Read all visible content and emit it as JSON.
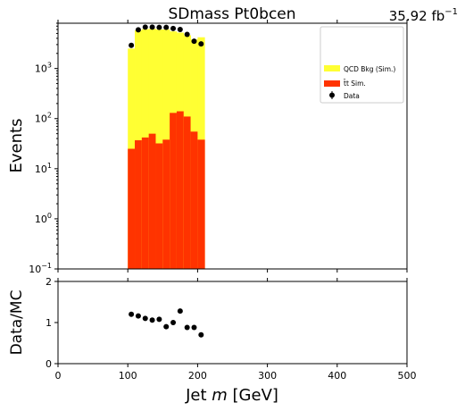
{
  "chart_data": [
    {
      "type": "bar",
      "title": "SDmass  Pt0bcen",
      "lumi": "35.92 fb",
      "lumi_sup": "−1",
      "xlabel_prefix": "Jet ",
      "xlabel_italic": "m",
      "xlabel_suffix": " [GeV]",
      "ylabel": "Events",
      "yscale": "log",
      "xlim": [
        0,
        500
      ],
      "ylim": [
        0.1,
        8000
      ],
      "xticks": [
        0,
        100,
        200,
        300,
        400,
        500
      ],
      "yticks": [
        0.1,
        1,
        10,
        100,
        1000
      ],
      "ytick_base": [
        "10",
        "10",
        "10",
        "10",
        "10"
      ],
      "ytick_exp": [
        "−1",
        "0",
        "1",
        "2",
        "3"
      ],
      "bin_edges": [
        100,
        110,
        120,
        130,
        140,
        150,
        160,
        170,
        180,
        190,
        200,
        210
      ],
      "series": [
        {
          "name": "QCD Bkg (Sim.)",
          "color": "#ffff33",
          "stack_top": [
            2500,
            5800,
            6100,
            6200,
            6000,
            6000,
            5500,
            5200,
            4600,
            3800,
            4200
          ]
        },
        {
          "name": "t̄t Sim.",
          "color": "#ff3300",
          "values": [
            25,
            37,
            42,
            50,
            32,
            38,
            130,
            140,
            110,
            55,
            38
          ]
        },
        {
          "name": "Data",
          "color": "#000000",
          "x": [
            105,
            115,
            125,
            135,
            145,
            155,
            165,
            175,
            185,
            195,
            205
          ],
          "values": [
            2900,
            5900,
            6700,
            6700,
            6600,
            6600,
            6300,
            6000,
            4800,
            3500,
            3100
          ]
        }
      ],
      "legend": {
        "position": "top-right"
      }
    },
    {
      "type": "scatter",
      "ylabel": "Data/MC",
      "xlim": [
        0,
        500
      ],
      "ylim": [
        0,
        2
      ],
      "yticks": [
        0,
        1,
        2
      ],
      "x": [
        105,
        115,
        125,
        135,
        145,
        155,
        165,
        175,
        185,
        195,
        205
      ],
      "values": [
        1.2,
        1.16,
        1.1,
        1.06,
        1.08,
        0.9,
        1.0,
        1.28,
        0.88,
        0.88,
        0.7
      ]
    }
  ]
}
